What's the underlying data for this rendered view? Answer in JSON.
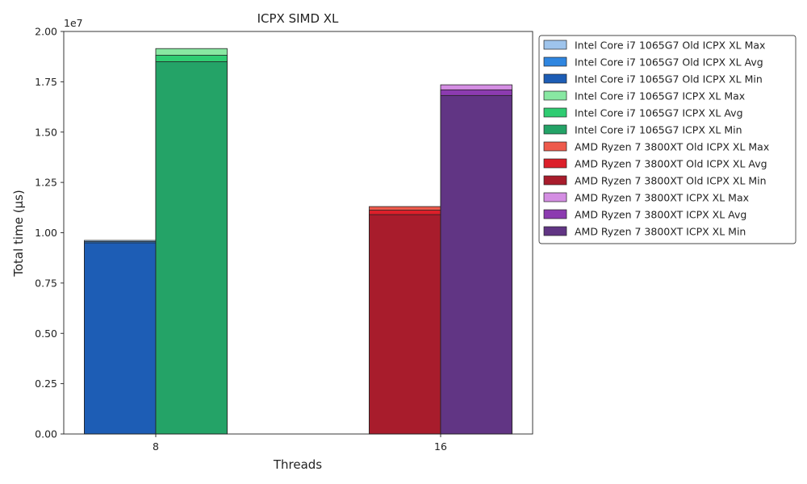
{
  "chart_data": {
    "type": "bar",
    "title": "ICPX SIMD XL",
    "xlabel": "Threads",
    "ylabel": "Total time (µs)",
    "y_offset_label": "1e7",
    "categories": [
      "8",
      "16"
    ],
    "ylim": [
      0,
      20000000
    ],
    "yticks": [
      0,
      2500000,
      5000000,
      7500000,
      10000000,
      12500000,
      15000000,
      17500000,
      20000000
    ],
    "ytick_labels": [
      "0.00",
      "0.25",
      "0.50",
      "0.75",
      "1.00",
      "1.25",
      "1.50",
      "1.75",
      "2.00"
    ],
    "grid": false,
    "legend_placement": "outside right",
    "stacked_layers": "max drawn first, then avg, then min on top",
    "series": [
      {
        "name": "Intel Core i7 1065G7 Old ICPX XL Max",
        "category": "8",
        "slot": 0,
        "value": 9620000,
        "color": "#9ec4ec"
      },
      {
        "name": "Intel Core i7 1065G7 Old ICPX XL Avg",
        "category": "8",
        "slot": 0,
        "value": 9560000,
        "color": "#2f86e0"
      },
      {
        "name": "Intel Core i7 1065G7 Old ICPX XL Min",
        "category": "8",
        "slot": 0,
        "value": 9500000,
        "color": "#1d5db5"
      },
      {
        "name": "Intel Core i7 1065G7 ICPX XL Max",
        "category": "8",
        "slot": 1,
        "value": 19150000,
        "color": "#88e8a2"
      },
      {
        "name": "Intel Core i7 1065G7 ICPX XL Avg",
        "category": "8",
        "slot": 1,
        "value": 18820000,
        "color": "#2fcc72"
      },
      {
        "name": "Intel Core i7 1065G7 ICPX XL Min",
        "category": "8",
        "slot": 1,
        "value": 18500000,
        "color": "#24a367"
      },
      {
        "name": "AMD Ryzen 7 3800XT Old ICPX XL Max",
        "category": "16",
        "slot": 0,
        "value": 11300000,
        "color": "#ee5a4c"
      },
      {
        "name": "AMD Ryzen 7 3800XT Old ICPX XL Avg",
        "category": "16",
        "slot": 0,
        "value": 11120000,
        "color": "#dc1f2a"
      },
      {
        "name": "AMD Ryzen 7 3800XT Old ICPX XL Min",
        "category": "16",
        "slot": 0,
        "value": 10900000,
        "color": "#a81c2c"
      },
      {
        "name": "AMD Ryzen 7 3800XT ICPX XL Max",
        "category": "16",
        "slot": 1,
        "value": 17350000,
        "color": "#d48ee3"
      },
      {
        "name": "AMD Ryzen 7 3800XT ICPX XL Avg",
        "category": "16",
        "slot": 1,
        "value": 17100000,
        "color": "#8c3bb0"
      },
      {
        "name": "AMD Ryzen 7 3800XT ICPX XL Min",
        "category": "16",
        "slot": 1,
        "value": 16820000,
        "color": "#613584"
      }
    ]
  }
}
